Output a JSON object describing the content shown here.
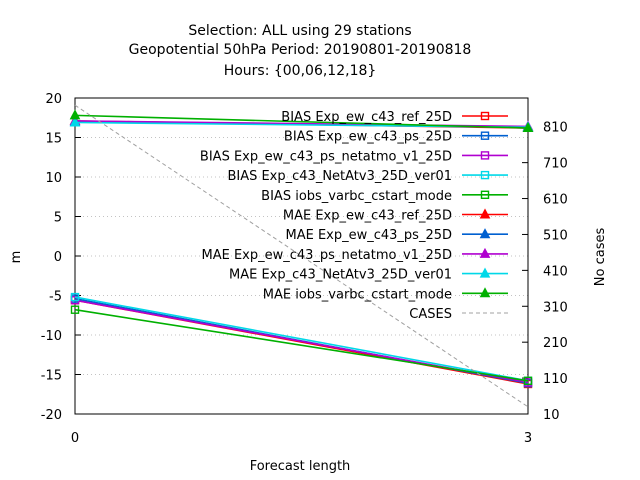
{
  "chart_data": {
    "type": "line",
    "title": [
      "Selection: ALL using    29 stations",
      "Geopotential 50hPa   Period: 20190801-20190818",
      "Hours: {00,06,12,18}"
    ],
    "xlabel": "Forecast length",
    "ylabel": "m",
    "y2label": "No cases",
    "x": [
      0,
      3
    ],
    "xticks": [
      "0",
      "3"
    ],
    "ylim": [
      -20,
      20
    ],
    "yticks": [
      "20",
      "15",
      "10",
      "5",
      "0",
      "-5",
      "-10",
      "-15",
      "-20"
    ],
    "y2lim": [
      10,
      890
    ],
    "y2ticks": [
      "810",
      "710",
      "610",
      "510",
      "410",
      "310",
      "210",
      "110",
      "10"
    ],
    "grid": true,
    "legend_position": "top-right",
    "series": [
      {
        "name": "BIAS Exp_ew_c43_ref_25D",
        "axis": "y",
        "color": "#ff0000",
        "marker": "square-open",
        "values": [
          -5.6,
          -16.2
        ]
      },
      {
        "name": "BIAS Exp_ew_c43_ps_25D",
        "axis": "y",
        "color": "#0060d0",
        "marker": "square-open",
        "values": [
          -5.4,
          -16.1
        ]
      },
      {
        "name": "BIAS Exp_ew_c43_ps_netatmo_v1_25D",
        "axis": "y",
        "color": "#b000d0",
        "marker": "square-open",
        "values": [
          -5.6,
          -16.0
        ]
      },
      {
        "name": "BIAS Exp_c43_NetAtv3_25D_ver01",
        "axis": "y",
        "color": "#00d8e8",
        "marker": "square-open",
        "values": [
          -5.2,
          -15.8
        ]
      },
      {
        "name": "BIAS iobs_varbc_cstart_mode",
        "axis": "y",
        "color": "#00b000",
        "marker": "square-open",
        "values": [
          -6.8,
          -15.8
        ]
      },
      {
        "name": "MAE Exp_ew_c43_ref_25D",
        "axis": "y",
        "color": "#ff0000",
        "marker": "triangle-filled",
        "values": [
          17.1,
          16.2
        ]
      },
      {
        "name": "MAE Exp_ew_c43_ps_25D",
        "axis": "y",
        "color": "#0060d0",
        "marker": "triangle-filled",
        "values": [
          17.0,
          16.3
        ]
      },
      {
        "name": "MAE Exp_ew_c43_ps_netatmo_v1_25D",
        "axis": "y",
        "color": "#b000d0",
        "marker": "triangle-filled",
        "values": [
          17.1,
          16.4
        ]
      },
      {
        "name": "MAE Exp_c43_NetAtv3_25D_ver01",
        "axis": "y",
        "color": "#00d8e8",
        "marker": "triangle-filled",
        "values": [
          16.9,
          16.3
        ]
      },
      {
        "name": "MAE iobs_varbc_cstart_mode",
        "axis": "y",
        "color": "#00b000",
        "marker": "triangle-filled",
        "values": [
          17.8,
          16.2
        ]
      },
      {
        "name": "CASES",
        "axis": "y2",
        "color": "#a0a0a0",
        "marker": "none",
        "dashed": true,
        "values": [
          870,
          30
        ]
      }
    ]
  }
}
